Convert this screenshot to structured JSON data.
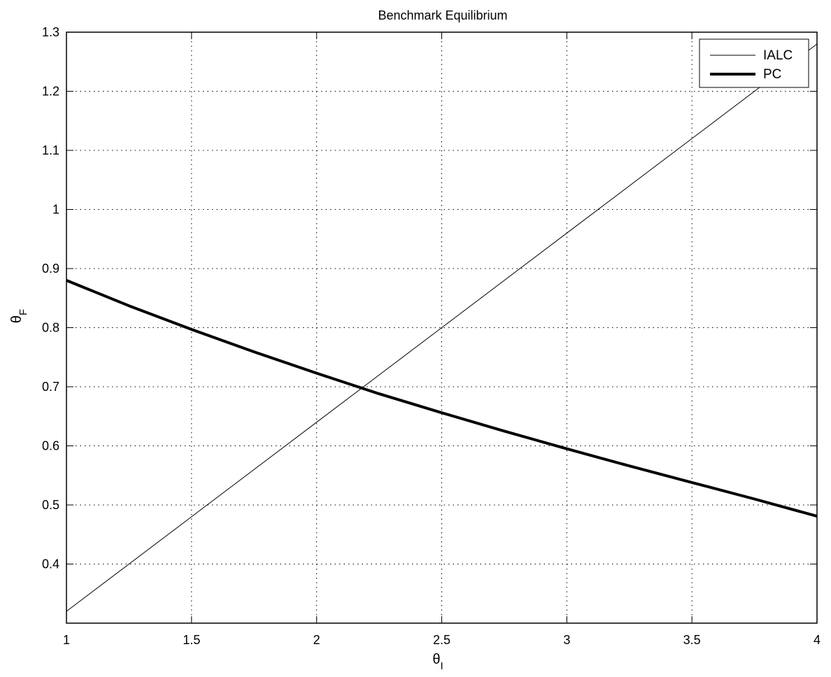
{
  "chart_data": {
    "type": "line",
    "title": "Benchmark Equilibrium",
    "xlabel": {
      "main": "θ",
      "sub": "I"
    },
    "ylabel": {
      "main": "θ",
      "sub": "F"
    },
    "xlim": [
      1,
      4
    ],
    "ylim": [
      0.3,
      1.3
    ],
    "xticks": [
      1,
      1.5,
      2,
      2.5,
      3,
      3.5,
      4
    ],
    "xtick_labels": [
      "1",
      "1.5",
      "2",
      "2.5",
      "3",
      "3.5",
      "4"
    ],
    "yticks": [
      0.4,
      0.5,
      0.6,
      0.7,
      0.8,
      0.9,
      1,
      1.1,
      1.2,
      1.3
    ],
    "ytick_labels": [
      "0.4",
      "0.5",
      "0.6",
      "0.7",
      "0.8",
      "0.9",
      "1",
      "1.1",
      "1.2",
      "1.3"
    ],
    "grid": true,
    "legend_position": "top-right",
    "series": [
      {
        "name": "IALC",
        "style": "thin",
        "color": "#000000",
        "x": [
          1,
          1.5,
          2,
          2.5,
          3,
          3.5,
          4
        ],
        "y": [
          0.32,
          0.48,
          0.64,
          0.8,
          0.96,
          1.12,
          1.28
        ]
      },
      {
        "name": "PC",
        "style": "thick",
        "color": "#000000",
        "x": [
          1,
          1.25,
          1.5,
          1.75,
          2,
          2.25,
          2.5,
          2.75,
          3,
          3.25,
          3.5,
          3.75,
          4
        ],
        "y": [
          0.88,
          0.837,
          0.797,
          0.759,
          0.723,
          0.688,
          0.656,
          0.625,
          0.595,
          0.566,
          0.538,
          0.51,
          0.481
        ]
      }
    ]
  }
}
